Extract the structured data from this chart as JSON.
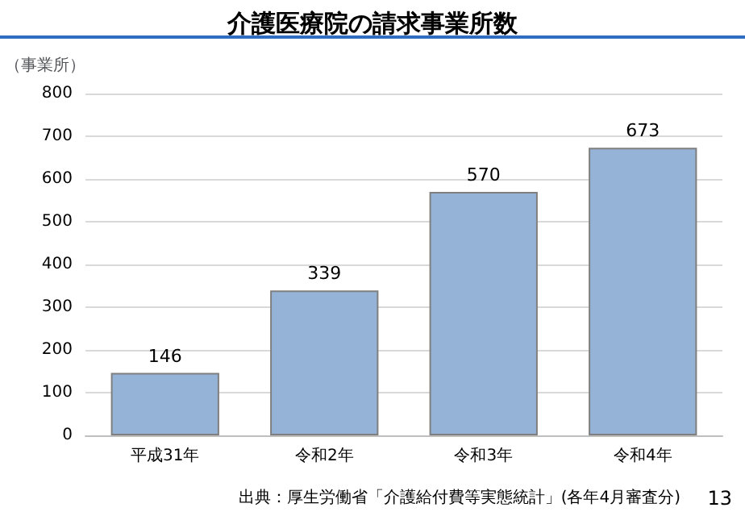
{
  "chart_data": {
    "type": "bar",
    "title": "介護医療院の請求事業所数",
    "ylabel": "（事業所）",
    "categories": [
      "平成31年",
      "令和2年",
      "令和3年",
      "令和4年"
    ],
    "values": [
      146,
      339,
      570,
      673
    ],
    "color": "#95b3d7",
    "ylim": [
      0,
      800
    ],
    "yticks": [
      0,
      100,
      200,
      300,
      400,
      500,
      600,
      700,
      800
    ],
    "grid": "y",
    "data_labels": true,
    "annotations": [
      "出典：厚生労働省「介護給付費等実態統計」(各年4月審査分)",
      "13"
    ]
  }
}
